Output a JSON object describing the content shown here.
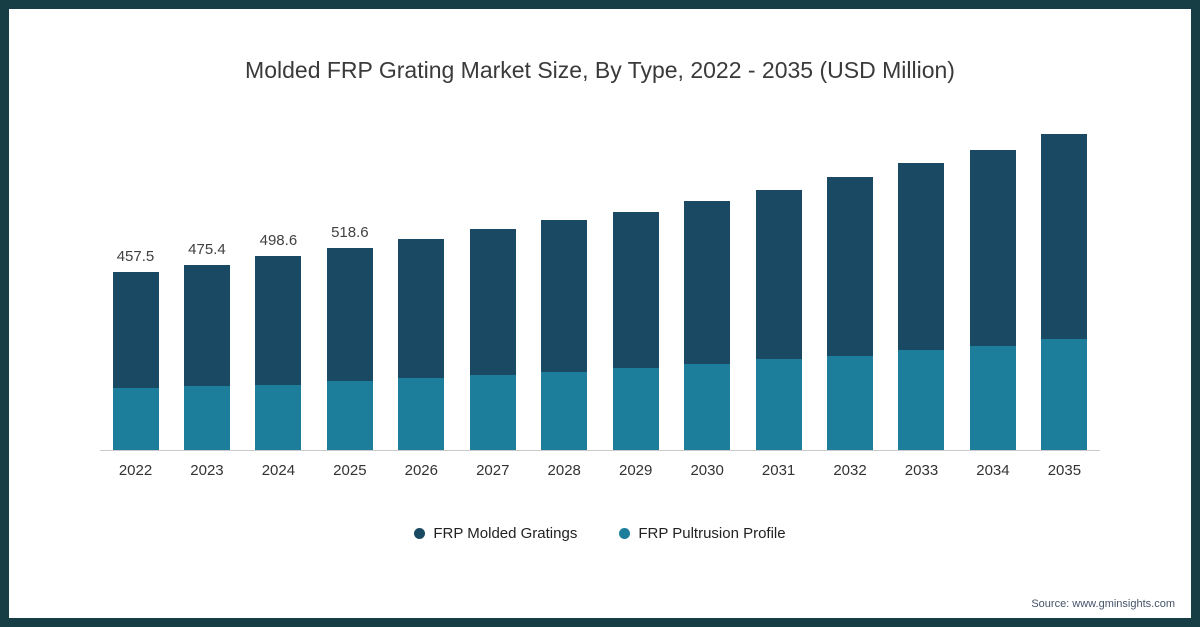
{
  "frame_color": "#163e44",
  "title": "Molded FRP Grating Market Size, By Type, 2022 - 2035 (USD Million)",
  "source": "Source: www.gminsights.com",
  "legend": [
    {
      "label": "FRP Molded Gratings",
      "color": "#1a4a63"
    },
    {
      "label": "FRP Pultrusion Profile",
      "color": "#1d7e9c"
    }
  ],
  "chart_data": {
    "type": "bar",
    "stacked": true,
    "title": "Molded FRP Grating Market Size, By Type, 2022 - 2035 (USD Million)",
    "xlabel": "",
    "ylabel": "USD Million",
    "ylim": [
      0,
      850
    ],
    "grid": false,
    "legend_position": "bottom",
    "categories": [
      "2022",
      "2023",
      "2024",
      "2025",
      "2026",
      "2027",
      "2028",
      "2029",
      "2030",
      "2031",
      "2032",
      "2033",
      "2034",
      "2035"
    ],
    "series": [
      {
        "name": "FRP Molded Gratings",
        "color": "#1a4a63",
        "values": [
          297.5,
          310.4,
          330.6,
          341.6,
          357,
          375,
          391,
          402,
          419,
          434,
          459,
          480,
          504,
          527
        ]
      },
      {
        "name": "FRP Pultrusion Profile",
        "color": "#1d7e9c",
        "values": [
          160,
          165,
          168,
          177,
          185,
          193,
          200,
          211,
          221,
          234,
          242,
          257,
          267,
          285
        ]
      }
    ],
    "totals": [
      457.5,
      475.4,
      498.6,
      518.6,
      542,
      568,
      591,
      613,
      640,
      668,
      701,
      737,
      771,
      812
    ],
    "data_labels": [
      "457.5",
      "475.4",
      "498.6",
      "518.6",
      "",
      "",
      "",
      "",
      "",
      "",
      "",
      "",
      "",
      ""
    ]
  }
}
